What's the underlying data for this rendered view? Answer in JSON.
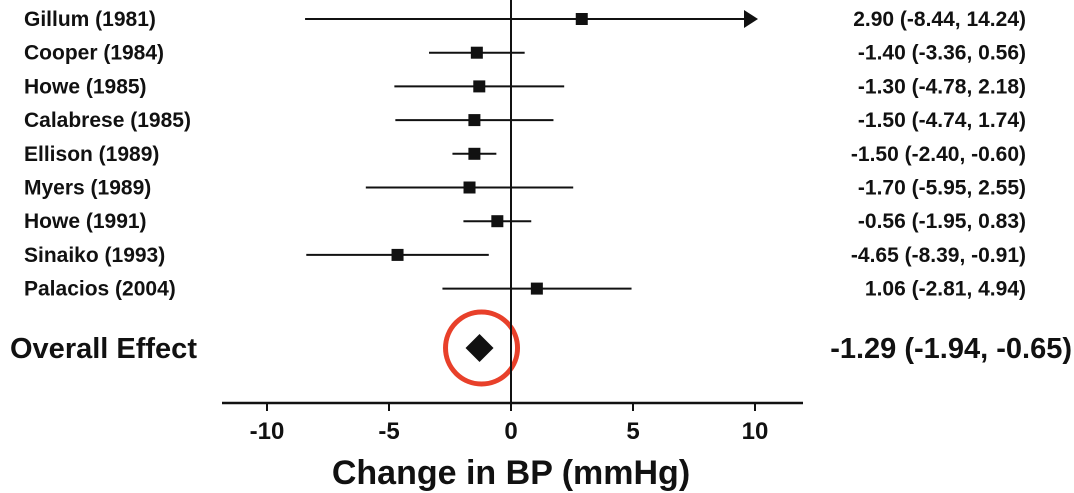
{
  "chart_data": {
    "type": "forest",
    "xlabel": "Change in BP (mmHg)",
    "xlim": [
      -12,
      12
    ],
    "xticks": [
      -10,
      -5,
      0,
      5,
      10
    ],
    "xtick_labels": [
      "-10",
      "-5",
      "0",
      "5",
      "10"
    ],
    "studies": [
      {
        "label": "Gillum (1981)",
        "estimate": 2.9,
        "lower": -8.44,
        "upper": 14.24,
        "ci_text": "2.90 (-8.44, 14.24)",
        "truncated_upper": true
      },
      {
        "label": "Cooper (1984)",
        "estimate": -1.4,
        "lower": -3.36,
        "upper": 0.56,
        "ci_text": "-1.40 (-3.36, 0.56)"
      },
      {
        "label": "Howe (1985)",
        "estimate": -1.3,
        "lower": -4.78,
        "upper": 2.18,
        "ci_text": "-1.30 (-4.78, 2.18)"
      },
      {
        "label": "Calabrese (1985)",
        "estimate": -1.5,
        "lower": -4.74,
        "upper": 1.74,
        "ci_text": "-1.50 (-4.74, 1.74)"
      },
      {
        "label": "Ellison (1989)",
        "estimate": -1.5,
        "lower": -2.4,
        "upper": -0.6,
        "ci_text": "-1.50 (-2.40, -0.60)"
      },
      {
        "label": "Myers (1989)",
        "estimate": -1.7,
        "lower": -5.95,
        "upper": 2.55,
        "ci_text": "-1.70 (-5.95, 2.55)"
      },
      {
        "label": "Howe (1991)",
        "estimate": -0.56,
        "lower": -1.95,
        "upper": 0.83,
        "ci_text": "-0.56 (-1.95, 0.83)"
      },
      {
        "label": "Sinaiko (1993)",
        "estimate": -4.65,
        "lower": -8.39,
        "upper": -0.91,
        "ci_text": "-4.65 (-8.39, -0.91)"
      },
      {
        "label": "Palacios (2004)",
        "estimate": 1.06,
        "lower": -2.81,
        "upper": 4.94,
        "ci_text": "1.06 (-2.81, 4.94)"
      }
    ],
    "overall": {
      "label": "Overall Effect",
      "estimate": -1.29,
      "lower": -1.94,
      "upper": -0.65,
      "ci_text": "-1.29 (-1.94, -0.65)"
    },
    "annotation": {
      "shape": "circle",
      "target": "overall-effect-diamond"
    },
    "colors": {
      "marks": "#111111",
      "annotation": "#e8402a"
    }
  }
}
